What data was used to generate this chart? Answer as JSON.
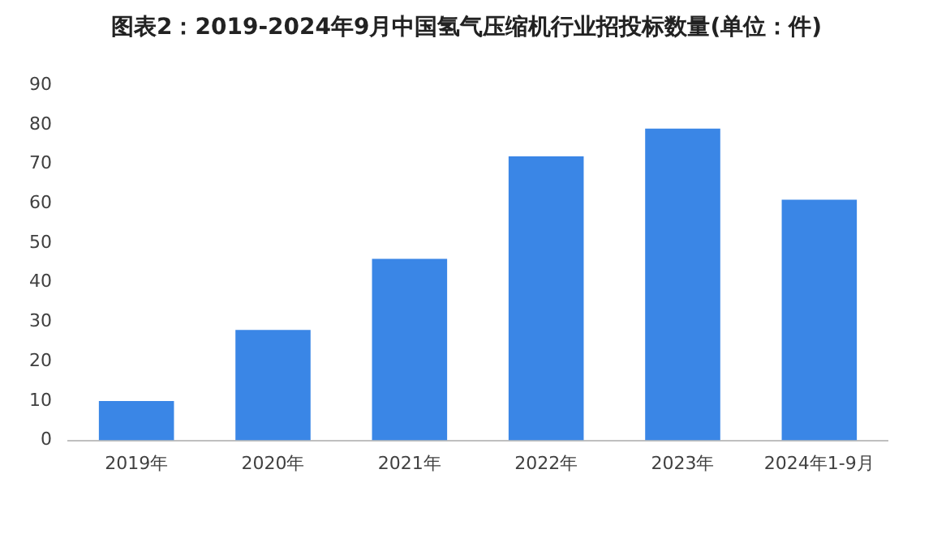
{
  "chart_data": {
    "type": "bar",
    "title": "图表2：2019-2024年9月中国氢气压缩机行业招投标数量(单位：件)",
    "categories": [
      "2019年",
      "2020年",
      "2021年",
      "2022年",
      "2023年",
      "2024年1-9月"
    ],
    "values": [
      10,
      28,
      46,
      72,
      79,
      61
    ],
    "color": "#3a86e6",
    "ylim": [
      0,
      90
    ],
    "yticks": [
      0,
      10,
      20,
      30,
      40,
      50,
      60,
      70,
      80,
      90
    ],
    "grid": false,
    "legend": false
  }
}
